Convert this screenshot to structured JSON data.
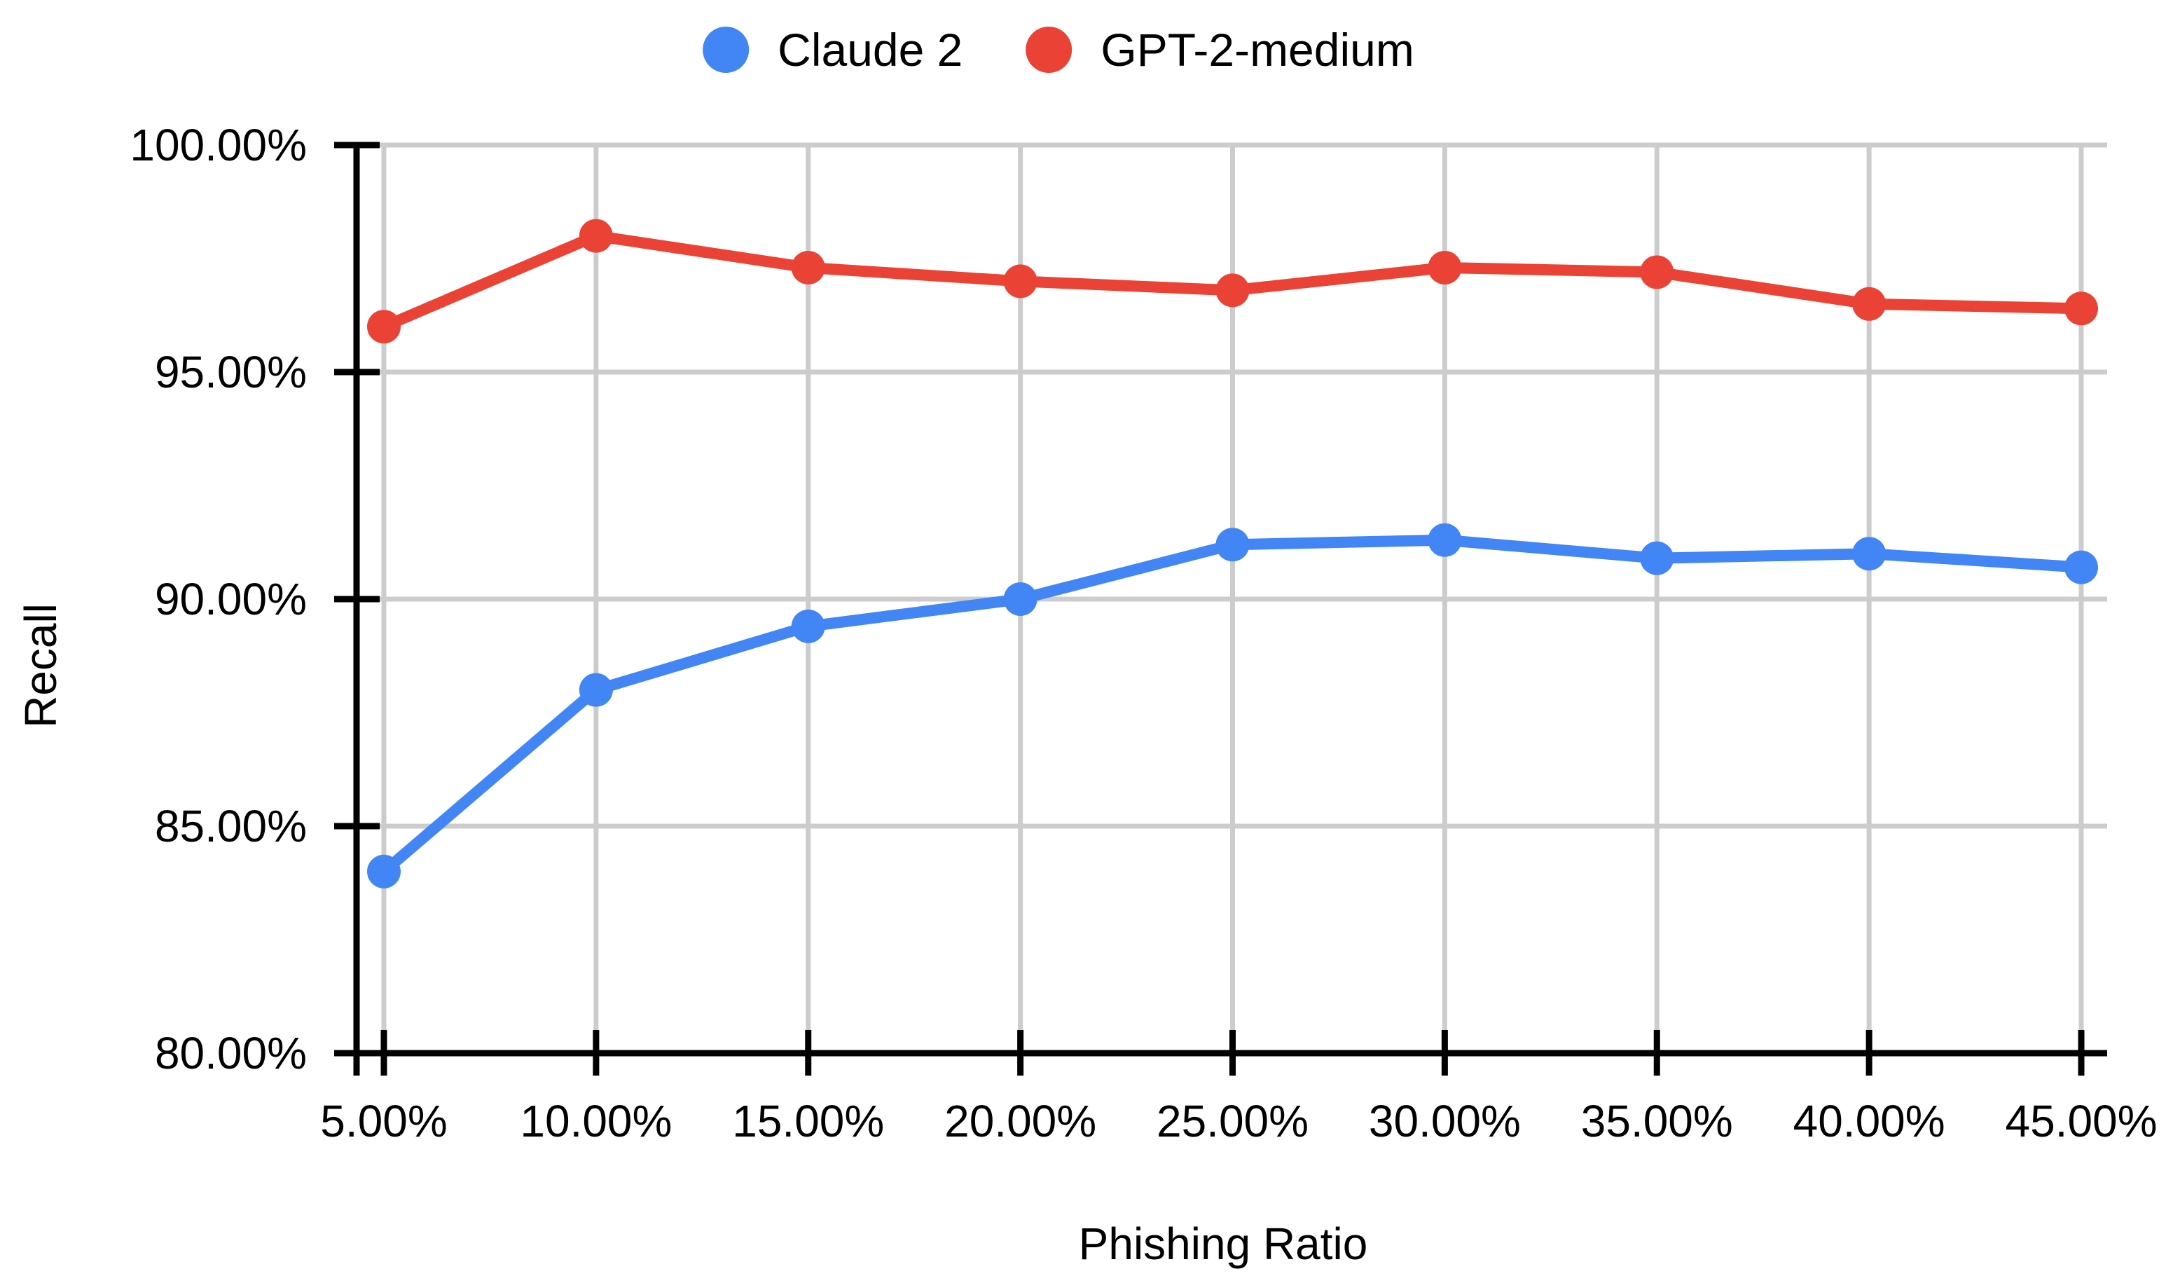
{
  "chart_data": {
    "type": "line",
    "title": "",
    "xlabel": "Phishing Ratio",
    "ylabel": "Recall",
    "x_values": [
      5,
      10,
      15,
      20,
      25,
      30,
      35,
      40,
      45
    ],
    "x_tick_labels": [
      "5.00%",
      "10.00%",
      "15.00%",
      "20.00%",
      "25.00%",
      "30.00%",
      "35.00%",
      "40.00%",
      "45.00%"
    ],
    "y_tick_values": [
      80,
      85,
      90,
      95,
      100
    ],
    "y_tick_labels": [
      "80.00%",
      "85.00%",
      "90.00%",
      "95.00%",
      "100.00%"
    ],
    "ylim": [
      80,
      100
    ],
    "grid": true,
    "legend_position": "top-center",
    "series": [
      {
        "name": "Claude 2",
        "color": "#4285f4",
        "values": [
          84.0,
          88.0,
          89.4,
          90.0,
          91.2,
          91.3,
          90.9,
          91.0,
          90.7
        ]
      },
      {
        "name": "GPT-2-medium",
        "color": "#ea4335",
        "values": [
          96.0,
          98.0,
          97.3,
          97.0,
          96.8,
          97.3,
          97.2,
          96.5,
          96.4
        ]
      }
    ],
    "colors": {
      "gridline": "#cccccc",
      "axis": "#000000",
      "text": "#000000",
      "background": "#ffffff"
    }
  }
}
